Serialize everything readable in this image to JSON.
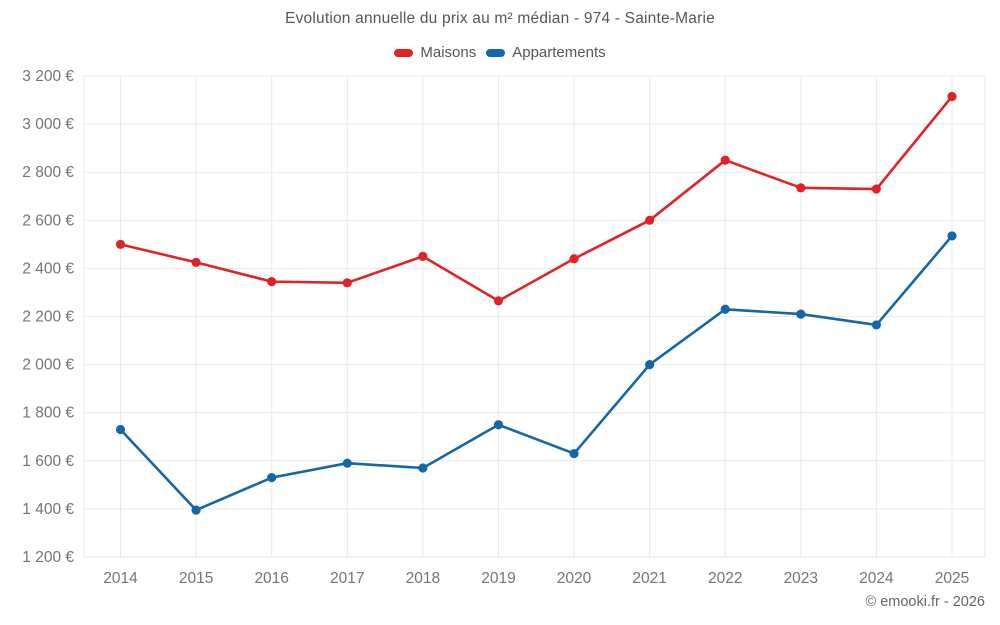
{
  "chart": {
    "footer": "© emooki.fr - 2026",
    "background": "#ffffff",
    "grid_color": "#e9e9e9",
    "tick_label_color": "#757575",
    "title_color": "#565656"
  },
  "chart_data": {
    "type": "line",
    "title": "Evolution annuelle du prix au m² médian - 974 - Sainte-Marie",
    "xlabel": "",
    "ylabel": "",
    "categories": [
      "2014",
      "2015",
      "2016",
      "2017",
      "2018",
      "2019",
      "2020",
      "2021",
      "2022",
      "2023",
      "2024",
      "2025"
    ],
    "series": [
      {
        "name": "Maisons",
        "color": "#e02426",
        "values": [
          2500,
          2425,
          2345,
          2340,
          2450,
          2265,
          2440,
          2600,
          2850,
          2735,
          2730,
          3115
        ]
      },
      {
        "name": "Appartements",
        "color": "#1467a8",
        "values": [
          1730,
          1395,
          1530,
          1590,
          1570,
          1750,
          1630,
          2000,
          2230,
          2210,
          2165,
          2535
        ]
      }
    ],
    "ylim": [
      1200,
      3200
    ],
    "ytick_step": 200,
    "ytick_labels": [
      "1 200 €",
      "1 400 €",
      "1 600 €",
      "1 800 €",
      "2 000 €",
      "2 200 €",
      "2 400 €",
      "2 600 €",
      "2 800 €",
      "3 000 €",
      "3 200 €"
    ],
    "grid": true,
    "legend_position": "top"
  }
}
